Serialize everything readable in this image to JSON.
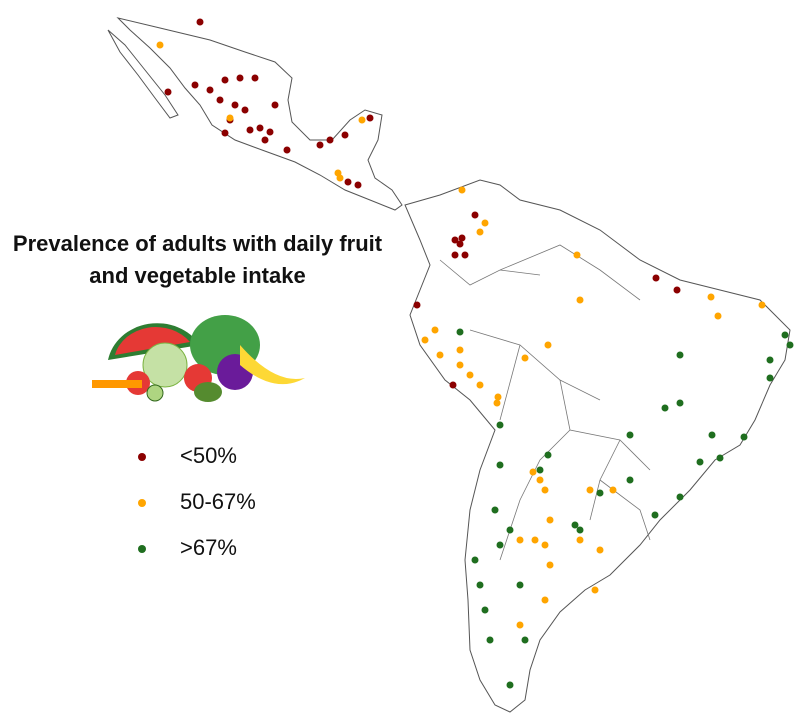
{
  "title": "Prevalence of adults with daily fruit and vegetable intake",
  "legend": [
    {
      "label": "<50%",
      "color": "#8b0000"
    },
    {
      "label": "50-67%",
      "color": "#ffa500"
    },
    {
      "label": ">67%",
      "color": "#1f6e1f"
    }
  ]
}
